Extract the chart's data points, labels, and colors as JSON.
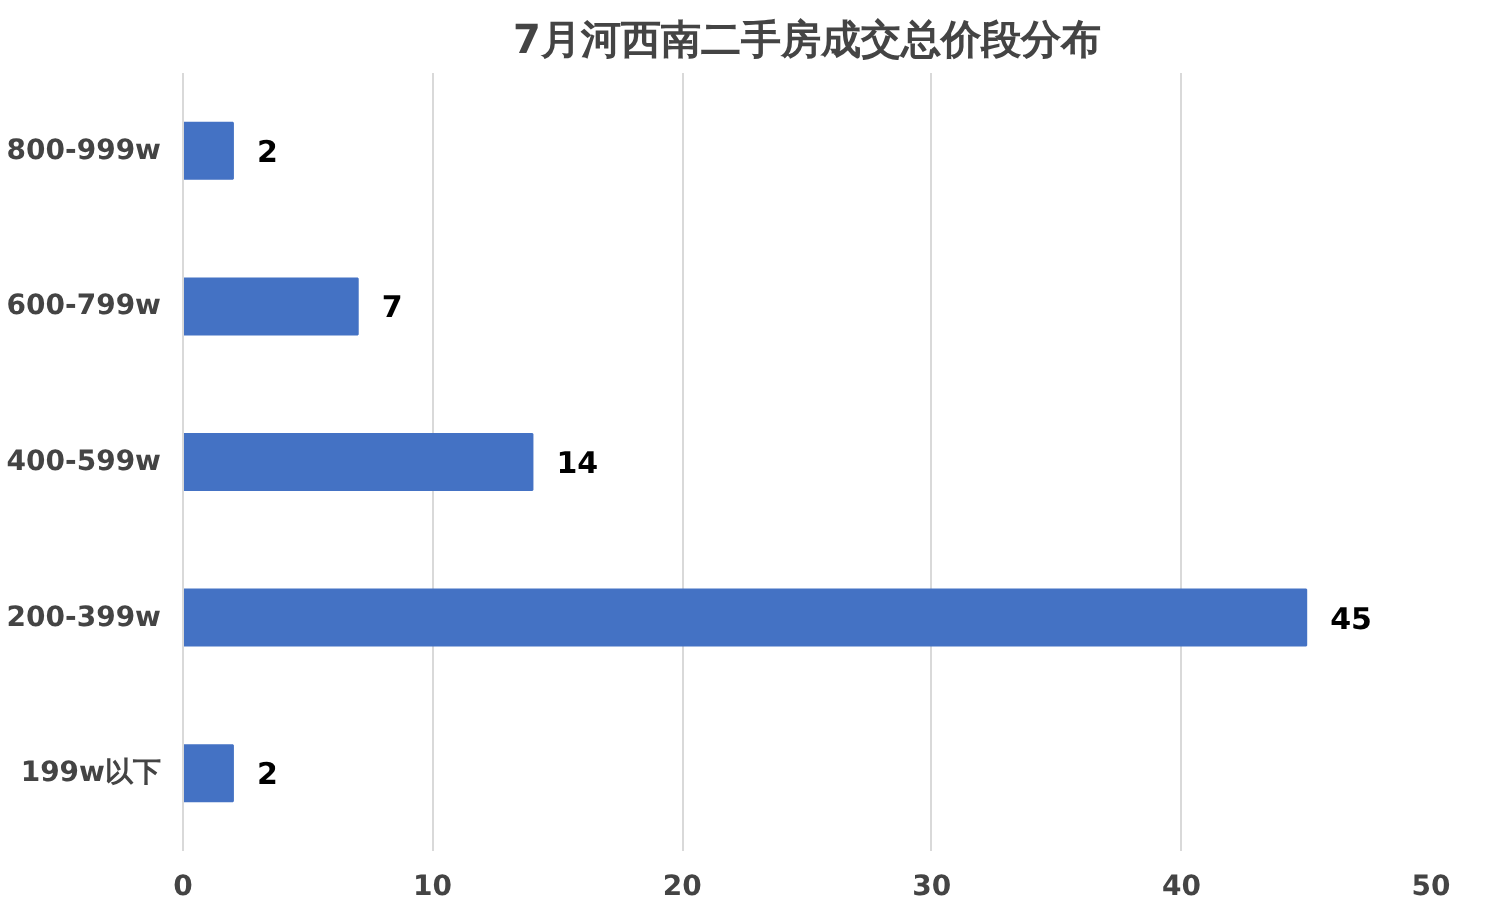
{
  "chart_data": {
    "type": "bar",
    "orientation": "horizontal",
    "title": "7月河西南二手房成交总价段分布",
    "categories": [
      "800-999w",
      "600-799w",
      "400-599w",
      "200-399w",
      "199w以下"
    ],
    "values": [
      2,
      7,
      14,
      45,
      2
    ],
    "color": "#4472c4",
    "xlim": [
      0,
      50
    ],
    "xticks": [
      0,
      10,
      20,
      30,
      40,
      50
    ],
    "grid": "x",
    "data_labels": true
  }
}
